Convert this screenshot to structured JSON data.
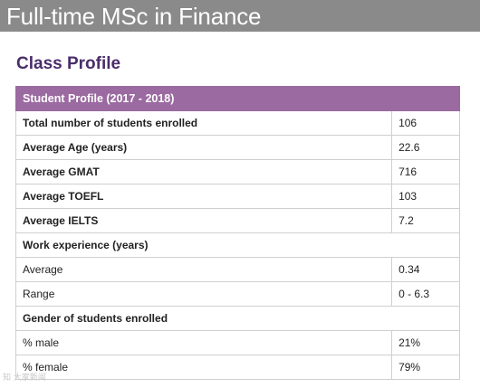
{
  "banner": {
    "title": "Full-time MSc in Finance"
  },
  "section": {
    "title": "Class Profile"
  },
  "table": {
    "header": "Student Profile (2017 - 2018)",
    "rows": [
      {
        "label": "Total number of students enrolled",
        "value": "106"
      },
      {
        "label": "Average Age (years)",
        "value": "22.6"
      },
      {
        "label": "Average GMAT",
        "value": "716"
      },
      {
        "label": "Average TOEFL",
        "value": "103"
      },
      {
        "label": "Average IELTS",
        "value": "7.2"
      },
      {
        "label": "Work experience (years)"
      },
      {
        "label": "Average",
        "value": "0.34"
      },
      {
        "label": "Range",
        "value": "0 - 6.3"
      },
      {
        "label": "Gender of students enrolled"
      },
      {
        "label": "% male",
        "value": "21%"
      },
      {
        "label": "% female",
        "value": "79%"
      }
    ]
  },
  "watermark": {
    "text": "知 大家新闻"
  },
  "colors": {
    "banner_bg": "#8a8a8a",
    "title_purple": "#4a2d6b",
    "header_bg": "#9a6aa0"
  }
}
